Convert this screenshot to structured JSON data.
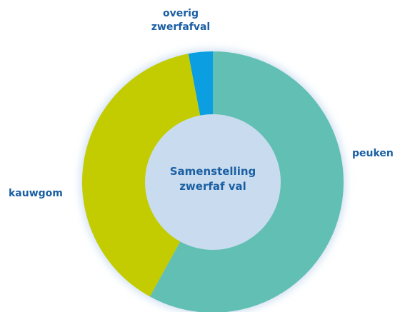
{
  "chart_data": {
    "type": "donut",
    "title": "Samenstelling zwerfaf val",
    "categories": [
      "peuken",
      "kauwgom",
      "overig zwerfafval"
    ],
    "values": [
      58,
      39,
      3
    ],
    "colors": [
      "#62bfb4",
      "#c2cc00",
      "#0b9ee0"
    ]
  }
}
